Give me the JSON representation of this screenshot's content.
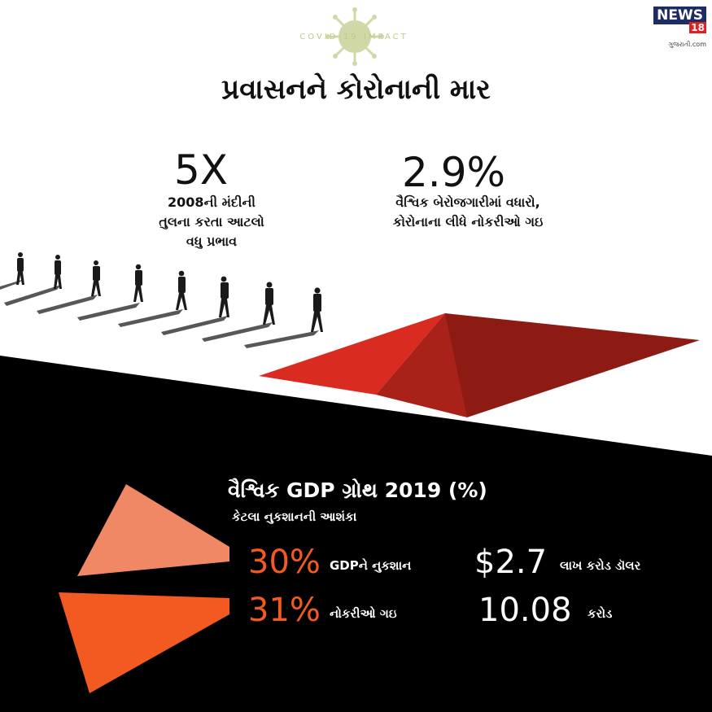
{
  "brand": {
    "name": "NEWS",
    "number": "18",
    "subtitle": "ગુજરાતી.com"
  },
  "header": {
    "kicker": "COVID-19 IMPACT",
    "title": "પ્રવાસનને કોરોનાની માર"
  },
  "stats": [
    {
      "value": "5X",
      "caption_line1": "2008ની મંદીની",
      "caption_line2": "તુલના કરતા આટલો",
      "caption_line3": "વધુ પ્રભાવ"
    },
    {
      "value": "2.9%",
      "caption_line1": "વૈશ્વિક બેરોજગારીમાં વધારો,",
      "caption_line2": "કોરોનાના લીધે નોકરીઓ ગઇ"
    }
  ],
  "gdp": {
    "title": "વૈશ્વિક GDP ગ્રોથ 2019 (%)",
    "subtitle": "કેટલા નુકશાનની આશંકા",
    "rows": [
      {
        "percent": "30%",
        "label": "GDPને નુકશાન",
        "amount": "$2.7",
        "unit": "લાખ કરોડ ડૉલર"
      },
      {
        "percent": "31%",
        "label": "નોકરીઓ ગઇ",
        "amount": "10.08",
        "unit": "કરોડ"
      }
    ]
  },
  "colors": {
    "background_dark": "#000000",
    "accent_orange": "#f25a22",
    "accent_salmon": "#f08866",
    "pit_red": "#d92b1f",
    "pit_dark": "#8e1a14",
    "brand_navy": "#1d2c64",
    "brand_red": "#e0201f",
    "kicker_green": "#bfc98a"
  },
  "icons": [
    "coronavirus-icon",
    "walking-businessman-icon"
  ]
}
